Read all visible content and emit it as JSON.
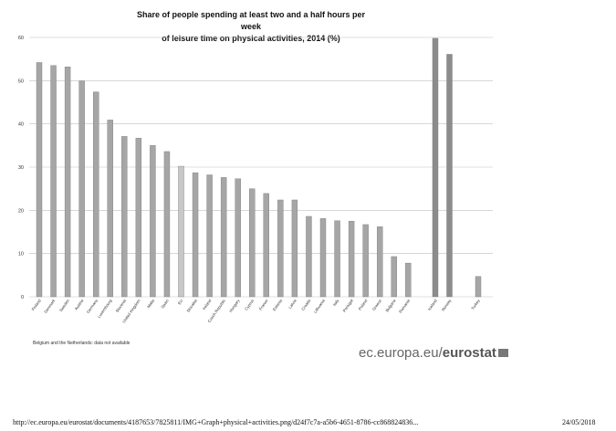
{
  "chart_data": {
    "type": "bar",
    "title_lines": [
      "Share of people spending at least two and a half hours per week",
      "of leisure time on physical activities, 2014 (%)"
    ],
    "xlabel": "",
    "ylabel": "",
    "ylim": [
      0,
      60
    ],
    "yticks": [
      "0",
      "10",
      "20",
      "30",
      "40",
      "50",
      "60"
    ],
    "grid": true,
    "categories": [
      "Finland",
      "Denmark",
      "Sweden",
      "Austria",
      "Germany",
      "Luxembourg",
      "Slovenia",
      "United Kingdom",
      "Malta",
      "Spain",
      "EU",
      "Slovakia",
      "Ireland",
      "Czech Republic",
      "Hungary",
      "Cyprus",
      "France",
      "Estonia",
      "Latvia",
      "Croatia",
      "Lithuania",
      "Italy",
      "Portugal",
      "Poland",
      "Greece",
      "Bulgaria",
      "Romania",
      "Iceland",
      "Norway",
      "Turkey"
    ],
    "values": [
      54.2,
      53.5,
      53.2,
      49.9,
      47.4,
      40.9,
      37.1,
      36.7,
      35.0,
      33.6,
      30.2,
      28.7,
      28.2,
      27.6,
      27.3,
      25.0,
      23.9,
      22.4,
      22.4,
      18.6,
      18.1,
      17.6,
      17.5,
      16.7,
      16.2,
      9.3,
      7.8,
      59.8,
      56.1,
      4.7
    ],
    "groups": [
      "eu",
      "eu",
      "eu",
      "eu",
      "eu",
      "eu",
      "eu",
      "eu",
      "eu",
      "eu",
      "aggregate",
      "eu",
      "eu",
      "eu",
      "eu",
      "eu",
      "eu",
      "eu",
      "eu",
      "eu",
      "eu",
      "eu",
      "eu",
      "eu",
      "eu",
      "eu",
      "eu",
      "efta",
      "efta",
      "candidate"
    ],
    "colors": {
      "eu": "#a6a6a6",
      "aggregate": "#c8c8c8",
      "efta": "#8c8c8c",
      "candidate": "#a6a6a6",
      "outline": "#7a7a7a",
      "grid": "#bfbfbf"
    },
    "note": "Belgium and the Netherlands: data not available"
  },
  "branding": {
    "text_regular": "ec.europa.eu/",
    "text_bold": "eurostat"
  },
  "footer": {
    "url": "http://ec.europa.eu/eurostat/documents/4187653/7825811/IMG+Graph+physical+activities.png/d24f7c7a-a5b6-4651-8786-cc868824836...",
    "date": "24/05/2018"
  }
}
